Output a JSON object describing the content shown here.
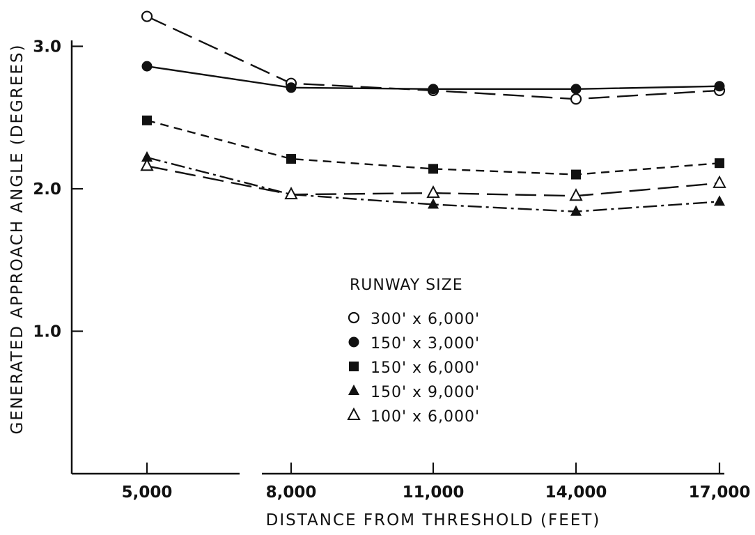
{
  "chart_data": {
    "type": "line",
    "xlabel": "DISTANCE FROM THRESHOLD (FEET)",
    "ylabel": "GENERATED APPROACH ANGLE (DEGREES)",
    "x": [
      5000,
      8000,
      11000,
      14000,
      17000
    ],
    "x_tick_labels": [
      "5,000",
      "8,000",
      "11,000",
      "14,000",
      "17,000"
    ],
    "y_ticks": [
      1.0,
      2.0,
      3.0
    ],
    "y_tick_labels": [
      "1.0",
      "2.0",
      "3.0"
    ],
    "ylim": [
      0.0,
      3.3
    ],
    "grid": false,
    "legend": {
      "title": "RUNWAY SIZE",
      "placement": "center",
      "entries": [
        "300' x 6,000'",
        "150' x 3,000'",
        "150' x 6,000'",
        "150' x 9,000'",
        "100' x 6,000'"
      ]
    },
    "series": [
      {
        "name": "300' x 6,000'",
        "marker": "circle-open",
        "dash": "long-dash",
        "values": [
          3.21,
          2.74,
          2.69,
          2.63,
          2.69
        ]
      },
      {
        "name": "150' x 3,000'",
        "marker": "circle-filled",
        "dash": "solid",
        "values": [
          2.86,
          2.71,
          2.7,
          2.7,
          2.72
        ]
      },
      {
        "name": "150' x 6,000'",
        "marker": "square-filled",
        "dash": "short-dash",
        "values": [
          2.48,
          2.21,
          2.14,
          2.1,
          2.18
        ]
      },
      {
        "name": "150' x 9,000'",
        "marker": "triangle-filled",
        "dash": "dash-dot",
        "values": [
          2.22,
          1.96,
          1.89,
          1.84,
          1.91
        ]
      },
      {
        "name": "100' x 6,000'",
        "marker": "triangle-open",
        "dash": "long-dash",
        "values": [
          2.16,
          1.96,
          1.97,
          1.95,
          2.04
        ]
      }
    ]
  }
}
